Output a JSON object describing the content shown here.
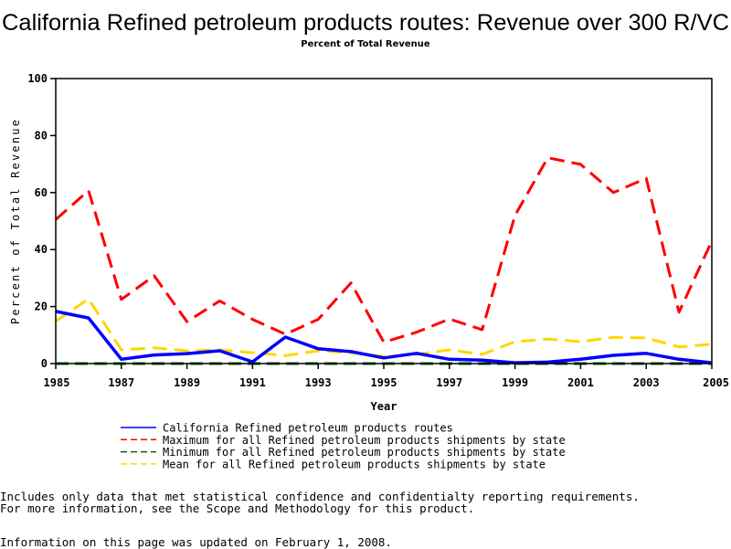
{
  "chart_data": {
    "type": "line",
    "title": "California Refined petroleum products routes: Revenue over 300 R/VC",
    "subtitle": "Percent of Total Revenue",
    "xlabel": "Year",
    "ylabel": "Percent of Total Revenue",
    "xlim": [
      1985,
      2005
    ],
    "ylim": [
      0,
      100
    ],
    "x_ticks": [
      "1985",
      "1987",
      "1989",
      "1991",
      "1993",
      "1995",
      "1997",
      "1999",
      "2001",
      "2003",
      "2005"
    ],
    "y_ticks": [
      "0",
      "20",
      "40",
      "60",
      "80",
      "100"
    ],
    "grid": false,
    "legend_position": "bottom",
    "x": [
      1985,
      1986,
      1987,
      1988,
      1989,
      1990,
      1991,
      1992,
      1993,
      1994,
      1995,
      1996,
      1997,
      1998,
      1999,
      2000,
      2001,
      2002,
      2003,
      2004,
      2005
    ],
    "series": [
      {
        "name": "California Refined petroleum products routes",
        "color": "#0000ff",
        "style": "solid",
        "values": [
          18.3,
          16,
          1.5,
          3,
          3.5,
          4.5,
          0.6,
          9.3,
          5.2,
          4.2,
          2,
          3.6,
          1.5,
          1.2,
          0.3,
          0.5,
          1.5,
          2.9,
          3.6,
          1.5,
          0.3
        ]
      },
      {
        "name": "Maximum for all Refined petroleum products shipments by state",
        "color": "#ff0000",
        "style": "dashed",
        "values": [
          50.5,
          60.7,
          22.5,
          30.8,
          14.7,
          22,
          15.5,
          10.3,
          15.5,
          28.3,
          7.5,
          11,
          15.6,
          11.9,
          52,
          72.2,
          69.9,
          60,
          65,
          18,
          43
        ]
      },
      {
        "name": "Minimum for all Refined petroleum products shipments by state",
        "color": "#006400",
        "style": "dashed",
        "values": [
          0,
          0,
          0,
          0,
          0,
          0,
          0,
          0,
          0,
          0,
          0,
          0,
          0,
          0,
          0,
          0,
          0,
          0,
          0,
          0,
          0
        ]
      },
      {
        "name": "Mean for all Refined petroleum products shipments by state",
        "color": "#ffd700",
        "style": "dashed",
        "values": [
          14.8,
          22.7,
          4.8,
          5.5,
          4.5,
          4.8,
          3.8,
          2.8,
          4.5,
          3.8,
          2.5,
          3.2,
          4.8,
          3.2,
          7.7,
          8.6,
          7.7,
          9.2,
          9,
          5.8,
          6.8
        ]
      }
    ]
  },
  "footer": {
    "note_line1": "Includes only data that met statistical confidence and confidentialty reporting requirements.",
    "note_line2": "For more information, see the Scope and Methodology for this product.",
    "updated": "Information on this page was updated on February 1, 2008."
  }
}
